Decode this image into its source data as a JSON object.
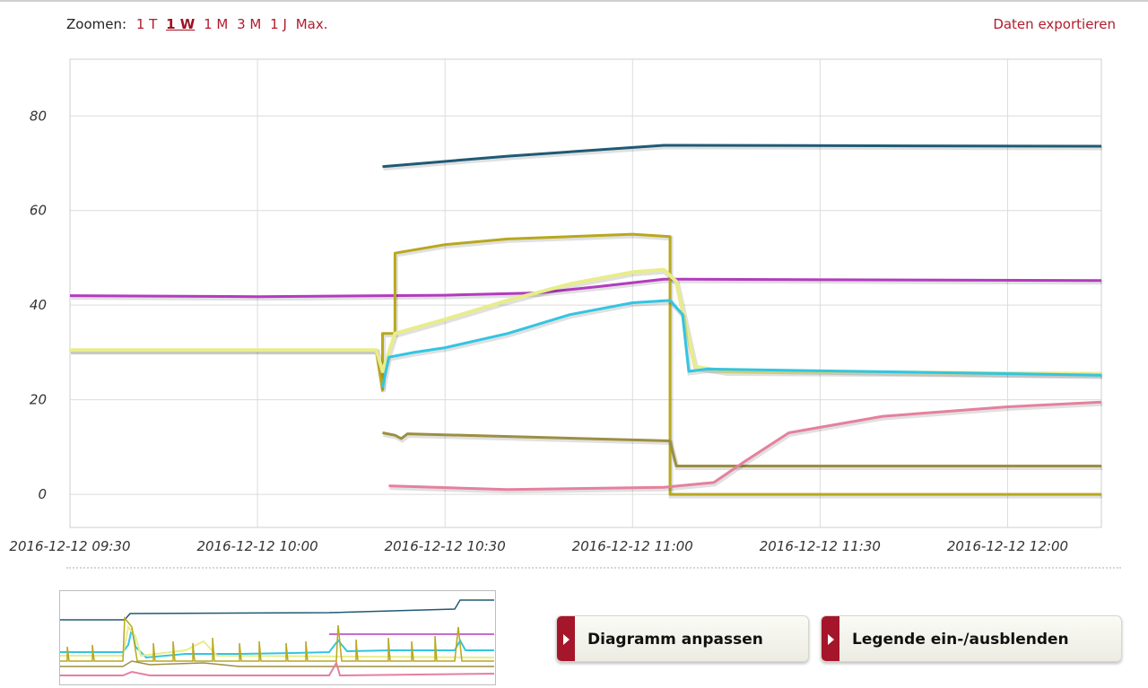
{
  "toolbar": {
    "zoom_label": "Zoomen:",
    "zoom_options": [
      "1 T",
      "1 W",
      "1 M",
      "3 M",
      "1 J",
      "Max."
    ],
    "zoom_active": "1 W",
    "export_label": "Daten exportieren"
  },
  "buttons": {
    "adjust_label": "Diagramm anpassen",
    "legend_label": "Legende ein-/ausblenden"
  },
  "colors": {
    "accent": "#b21c2c",
    "button_tab": "#a5162a",
    "grid": "#dcdcdc"
  },
  "chart_data": {
    "type": "line",
    "x_ticks": [
      "2016-12-12 09:30",
      "2016-12-12 10:00",
      "2016-12-12 10:30",
      "2016-12-12 11:00",
      "2016-12-12 11:30",
      "2016-12-12 12:00"
    ],
    "y_ticks": [
      0,
      20,
      40,
      60,
      80
    ],
    "xlim": [
      "2016-12-12 09:30",
      "2016-12-12 12:15"
    ],
    "ylim": [
      -7,
      92
    ],
    "grid": true,
    "series": [
      {
        "color": "#1f5a74",
        "width": 3,
        "points": [
          [
            "2016-12-12 10:20",
            69.3
          ],
          [
            "2016-12-12 10:40",
            71.5
          ],
          [
            "2016-12-12 11:05",
            73.8
          ],
          [
            "2016-12-12 12:15",
            73.6
          ]
        ]
      },
      {
        "color": "#b33bbf",
        "width": 3,
        "points": [
          [
            "2016-12-12 09:30",
            42
          ],
          [
            "2016-12-12 10:00",
            41.8
          ],
          [
            "2016-12-12 10:30",
            42.1
          ],
          [
            "2016-12-12 10:45",
            42.6
          ],
          [
            "2016-12-12 10:55",
            44
          ],
          [
            "2016-12-12 11:05",
            45.5
          ],
          [
            "2016-12-12 12:15",
            45.2
          ]
        ]
      },
      {
        "color": "#b8a81e",
        "width": 3,
        "points": [
          [
            "2016-12-12 09:30",
            30.5
          ],
          [
            "2016-12-12 10:00",
            30.5
          ],
          [
            "2016-12-12 10:19",
            30.5
          ],
          [
            "2016-12-12 10:20",
            22
          ],
          [
            "2016-12-12 10:20",
            34
          ],
          [
            "2016-12-12 10:22",
            34
          ],
          [
            "2016-12-12 10:22",
            51
          ],
          [
            "2016-12-12 10:30",
            52.8
          ],
          [
            "2016-12-12 10:40",
            54
          ],
          [
            "2016-12-12 11:00",
            55
          ],
          [
            "2016-12-12 11:06",
            54.5
          ],
          [
            "2016-12-12 11:06",
            0
          ],
          [
            "2016-12-12 12:15",
            0
          ]
        ]
      },
      {
        "color": "#e8ed8a",
        "width": 4,
        "points": [
          [
            "2016-12-12 09:30",
            30.5
          ],
          [
            "2016-12-12 10:19",
            30.5
          ],
          [
            "2016-12-12 10:20",
            26
          ],
          [
            "2016-12-12 10:22",
            34
          ],
          [
            "2016-12-12 10:30",
            37
          ],
          [
            "2016-12-12 10:40",
            41
          ],
          [
            "2016-12-12 10:50",
            44.5
          ],
          [
            "2016-12-12 11:00",
            47
          ],
          [
            "2016-12-12 11:05",
            47.5
          ],
          [
            "2016-12-12 11:07",
            45
          ],
          [
            "2016-12-12 11:10",
            27
          ],
          [
            "2016-12-12 11:15",
            26
          ],
          [
            "2016-12-12 12:15",
            25.5
          ]
        ]
      },
      {
        "color": "#32c5e2",
        "width": 3,
        "points": [
          [
            "2016-12-12 10:20",
            22.5
          ],
          [
            "2016-12-12 10:21",
            29
          ],
          [
            "2016-12-12 10:25",
            30
          ],
          [
            "2016-12-12 10:30",
            31
          ],
          [
            "2016-12-12 10:40",
            34
          ],
          [
            "2016-12-12 10:50",
            38
          ],
          [
            "2016-12-12 11:00",
            40.5
          ],
          [
            "2016-12-12 11:06",
            41
          ],
          [
            "2016-12-12 11:08",
            38
          ],
          [
            "2016-12-12 11:09",
            26
          ],
          [
            "2016-12-12 11:12",
            26.5
          ],
          [
            "2016-12-12 12:15",
            25.2
          ]
        ]
      },
      {
        "color": "#9c8f42",
        "width": 3,
        "points": [
          [
            "2016-12-12 10:20",
            13
          ],
          [
            "2016-12-12 10:22",
            12.5
          ],
          [
            "2016-12-12 10:23",
            11.8
          ],
          [
            "2016-12-12 10:24",
            12.8
          ],
          [
            "2016-12-12 11:06",
            11.3
          ],
          [
            "2016-12-12 11:07",
            6
          ],
          [
            "2016-12-12 12:15",
            6
          ]
        ]
      },
      {
        "color": "#e5809e",
        "width": 3,
        "points": [
          [
            "2016-12-12 10:21",
            1.8
          ],
          [
            "2016-12-12 10:40",
            1
          ],
          [
            "2016-12-12 11:05",
            1.5
          ],
          [
            "2016-12-12 11:13",
            2.5
          ],
          [
            "2016-12-12 11:18",
            7
          ],
          [
            "2016-12-12 11:25",
            13
          ],
          [
            "2016-12-12 11:40",
            16.5
          ],
          [
            "2016-12-12 12:00",
            18.5
          ],
          [
            "2016-12-12 12:15",
            19.5
          ]
        ]
      }
    ]
  }
}
